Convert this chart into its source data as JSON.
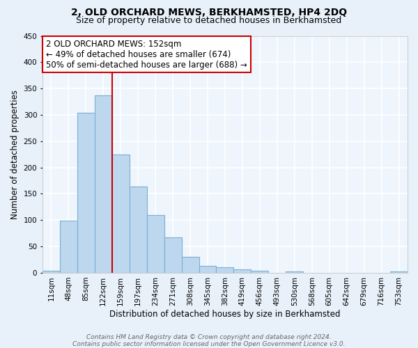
{
  "title": "2, OLD ORCHARD MEWS, BERKHAMSTED, HP4 2DQ",
  "subtitle": "Size of property relative to detached houses in Berkhamsted",
  "xlabel": "Distribution of detached houses by size in Berkhamsted",
  "ylabel": "Number of detached properties",
  "bar_labels": [
    "11sqm",
    "48sqm",
    "85sqm",
    "122sqm",
    "159sqm",
    "197sqm",
    "234sqm",
    "271sqm",
    "308sqm",
    "345sqm",
    "382sqm",
    "419sqm",
    "456sqm",
    "493sqm",
    "530sqm",
    "568sqm",
    "605sqm",
    "642sqm",
    "679sqm",
    "716sqm",
    "753sqm"
  ],
  "bar_values": [
    4,
    99,
    304,
    337,
    225,
    164,
    109,
    68,
    31,
    13,
    10,
    6,
    4,
    0,
    2,
    0,
    0,
    0,
    0,
    0,
    2
  ],
  "bar_color": "#bdd7ee",
  "bar_edge_color": "#7bafd4",
  "vline_index": 4,
  "vline_color": "#cc0000",
  "ylim": [
    0,
    450
  ],
  "yticks": [
    0,
    50,
    100,
    150,
    200,
    250,
    300,
    350,
    400,
    450
  ],
  "annotation_lines": [
    "2 OLD ORCHARD MEWS: 152sqm",
    "← 49% of detached houses are smaller (674)",
    "50% of semi-detached houses are larger (688) →"
  ],
  "annotation_box_color": "#ffffff",
  "annotation_box_edgecolor": "#cc0000",
  "footer_lines": [
    "Contains HM Land Registry data © Crown copyright and database right 2024.",
    "Contains public sector information licensed under the Open Government Licence v3.0."
  ],
  "bg_color": "#e8f1fa",
  "plot_bg_color": "#eef5fc",
  "grid_color": "#ffffff",
  "title_fontsize": 10,
  "subtitle_fontsize": 9,
  "axis_label_fontsize": 8.5,
  "tick_fontsize": 7.5,
  "annotation_fontsize": 8.5,
  "footer_fontsize": 6.5
}
